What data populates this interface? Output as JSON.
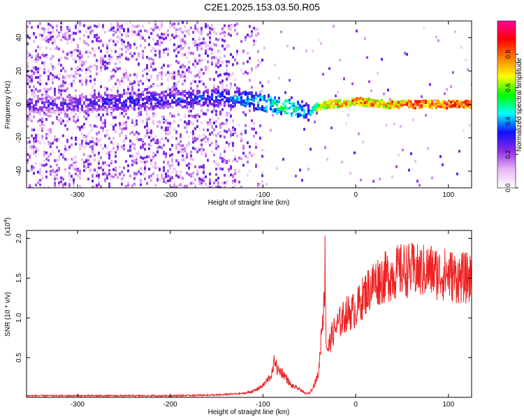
{
  "figure": {
    "title": "C2E1.2025.153.03.50.R05"
  },
  "chart_data": [
    {
      "type": "heatmap",
      "xlabel": "Height of straight line (km)",
      "ylabel": "Frequency (Hz)",
      "xlim": [
        -355,
        125
      ],
      "ylim": [
        -50,
        50
      ],
      "x_ticks": [
        -300,
        -200,
        -100,
        0,
        100
      ],
      "y_ticks": [
        -40,
        -20,
        0,
        20,
        40
      ],
      "colorbar": {
        "label": "Normalized spectral amplitude",
        "range": [
          0,
          1
        ],
        "ticks": [
          "0.0",
          "0.2",
          "0.4",
          "0.6",
          "0.8"
        ],
        "tick_values": [
          0.0,
          0.2,
          0.4,
          0.6,
          0.8
        ],
        "colors": [
          "#ffffff",
          "#e9b6f5",
          "#8a2be2",
          "#1010ff",
          "#00ffff",
          "#00ff00",
          "#ffff00",
          "#ff8000",
          "#ff0000",
          "#ff00a0"
        ]
      },
      "ridge": {
        "x": [
          -355,
          -300,
          -250,
          -200,
          -150,
          -120,
          -100,
          -80,
          -60,
          -50,
          -45,
          -30,
          -10,
          0,
          30,
          60,
          90,
          125
        ],
        "frequency": [
          0,
          0,
          2,
          3,
          4,
          3,
          1,
          -1,
          -3,
          -5,
          -2,
          0,
          1,
          2,
          0,
          0,
          0,
          0
        ],
        "amplitude": [
          0.3,
          0.3,
          0.35,
          0.35,
          0.4,
          0.45,
          0.5,
          0.55,
          0.5,
          0.45,
          0.6,
          0.75,
          0.8,
          0.85,
          0.8,
          0.9,
          0.9,
          0.9
        ]
      }
    },
    {
      "type": "line",
      "xlabel": "Height of straight line (km)",
      "ylabel": "SNR (10 * v/v)",
      "y_multiplier_label": "(x10",
      "y_multiplier_exponent": "4",
      "y_multiplier_close": ")",
      "xlim": [
        -355,
        125
      ],
      "ylim": [
        0,
        2.1
      ],
      "x_ticks": [
        -300,
        -200,
        -100,
        0,
        100
      ],
      "y_ticks": [
        "0.5",
        "1.0",
        "1.5",
        "2.0"
      ],
      "y_tick_values": [
        0.5,
        1.0,
        1.5,
        2.0
      ],
      "series": [
        {
          "color": "#ee2222",
          "x": [
            -355,
            -300,
            -250,
            -200,
            -150,
            -120,
            -110,
            -100,
            -95,
            -90,
            -87,
            -85,
            -80,
            -75,
            -70,
            -60,
            -55,
            -50,
            -45,
            -40,
            -38,
            -36,
            -34,
            -33,
            -32,
            -30,
            -25,
            -20,
            -10,
            0,
            10,
            20,
            30,
            40,
            50,
            60,
            70,
            80,
            90,
            100,
            110,
            125
          ],
          "y": [
            0.02,
            0.02,
            0.02,
            0.02,
            0.03,
            0.05,
            0.08,
            0.15,
            0.22,
            0.3,
            0.5,
            0.35,
            0.32,
            0.25,
            0.15,
            0.1,
            0.05,
            0.05,
            0.15,
            0.3,
            0.65,
            1.0,
            1.15,
            1.8,
            0.7,
            0.6,
            0.8,
            0.9,
            1.05,
            1.1,
            1.3,
            1.45,
            1.5,
            1.55,
            1.6,
            1.6,
            1.58,
            1.6,
            1.55,
            1.55,
            1.5,
            1.5
          ]
        }
      ]
    }
  ]
}
